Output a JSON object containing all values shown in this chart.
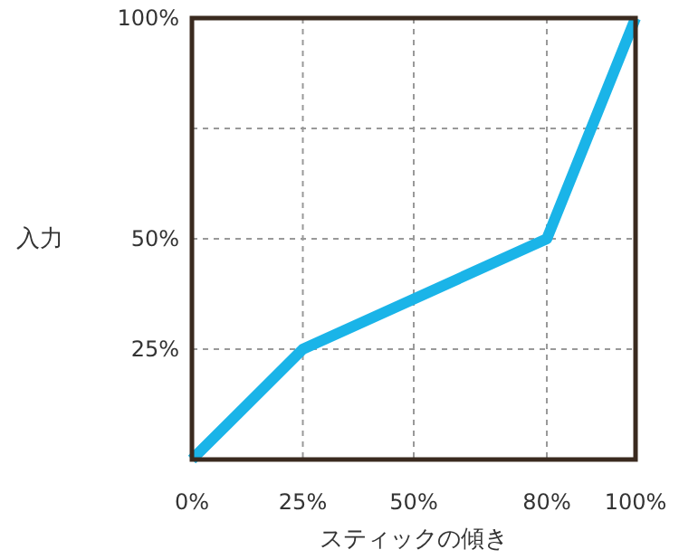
{
  "chart_data": {
    "type": "line",
    "xlabel": "スティックの傾き",
    "ylabel": "入力",
    "x": [
      0,
      25,
      80,
      100
    ],
    "series": [
      {
        "color": "#1ab4e8",
        "values": [
          0,
          25,
          50,
          100
        ]
      }
    ],
    "xlim": [
      0,
      100
    ],
    "ylim": [
      0,
      100
    ],
    "xticks": [
      {
        "value": 0,
        "label": "0%"
      },
      {
        "value": 25,
        "label": "25%"
      },
      {
        "value": 50,
        "label": "50%"
      },
      {
        "value": 80,
        "label": "80%"
      },
      {
        "value": 100,
        "label": "100%"
      }
    ],
    "yticks": [
      {
        "value": 25,
        "label": "25%"
      },
      {
        "value": 50,
        "label": "50%"
      },
      {
        "value": 75,
        "label": null
      },
      {
        "value": 100,
        "label": "100%"
      }
    ],
    "grid": true,
    "marker": "none",
    "line_style": "solid"
  }
}
